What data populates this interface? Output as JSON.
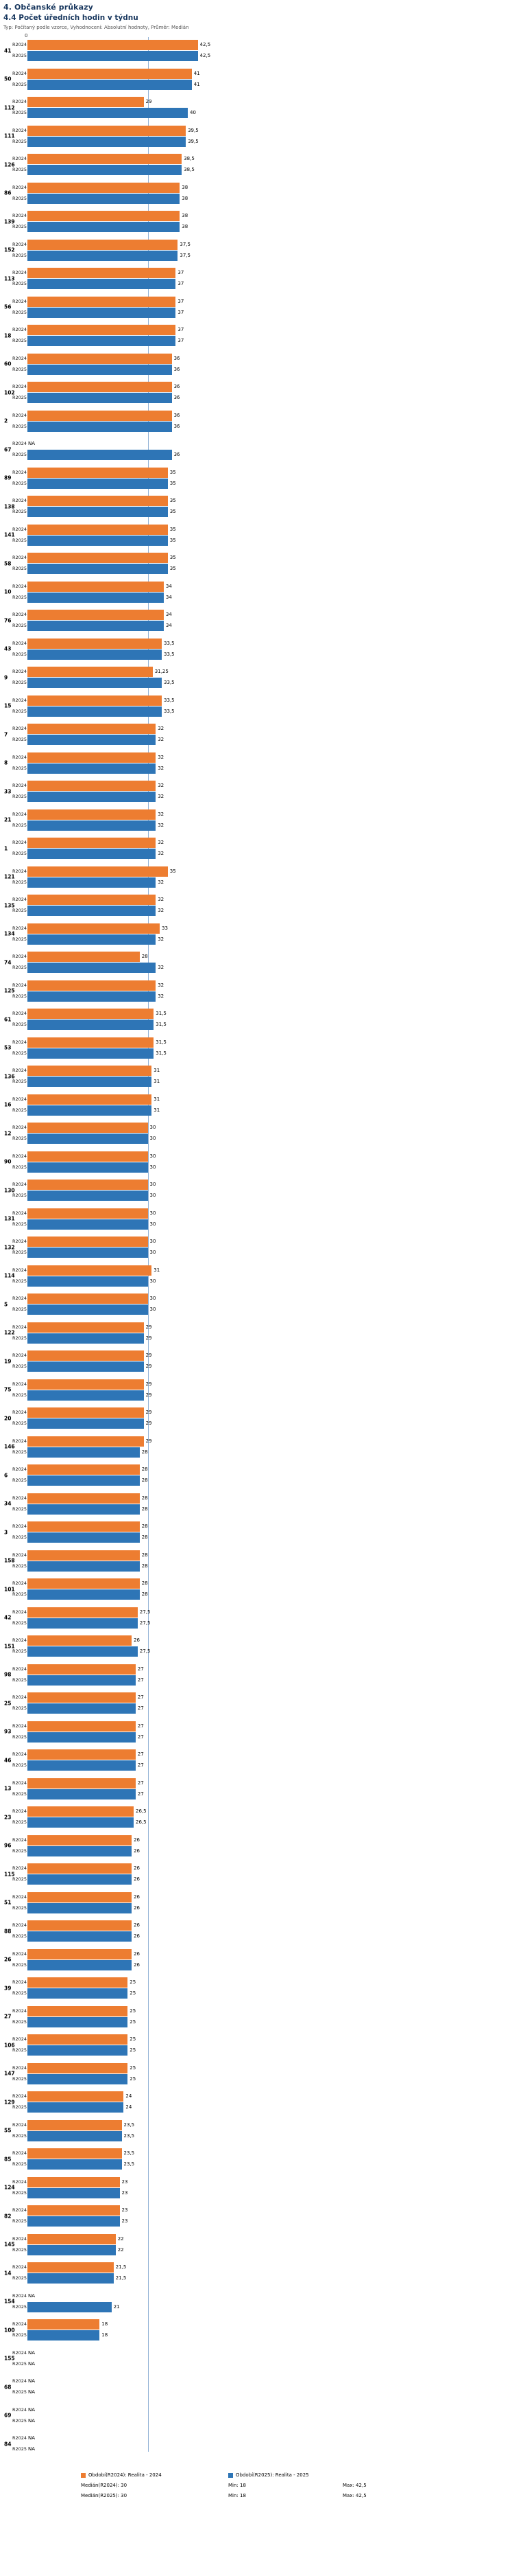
{
  "header": {
    "title": "4. Občanské průkazy",
    "subtitle": "4.4 Počet úředních hodin v týdnu",
    "meta": "Typ: Počítaný podle vzorce, Vyhodnocení: Absolutní hodnoty, Průměr: Medián"
  },
  "colors": {
    "heading": "#17365D",
    "bar_2024": "#ED7D31",
    "bar_2025": "#2E75B6",
    "median_line": "#8FAFD4"
  },
  "chart_data": {
    "type": "bar",
    "orientation": "horizontal",
    "axis_zero_label": "0",
    "median": 30,
    "x_min": 0,
    "x_max": 42.5,
    "sort": "descending by R2025",
    "series": [
      {
        "name": "R2024",
        "color": "#ED7D31"
      },
      {
        "name": "R2025",
        "color": "#2E75B6"
      }
    ],
    "groups": [
      {
        "id": "41",
        "v2024": 42.5,
        "v2025": 42.5
      },
      {
        "id": "50",
        "v2024": 41,
        "v2025": 41
      },
      {
        "id": "112",
        "v2024": 29,
        "v2025": 40
      },
      {
        "id": "111",
        "v2024": 39.5,
        "v2025": 39.5
      },
      {
        "id": "126",
        "v2024": 38.5,
        "v2025": 38.5
      },
      {
        "id": "86",
        "v2024": 38,
        "v2025": 38
      },
      {
        "id": "139",
        "v2024": 38,
        "v2025": 38
      },
      {
        "id": "152",
        "v2024": 37.5,
        "v2025": 37.5
      },
      {
        "id": "113",
        "v2024": 37,
        "v2025": 37
      },
      {
        "id": "56",
        "v2024": 37,
        "v2025": 37
      },
      {
        "id": "18",
        "v2024": 37,
        "v2025": 37
      },
      {
        "id": "60",
        "v2024": 36,
        "v2025": 36
      },
      {
        "id": "102",
        "v2024": 36,
        "v2025": 36
      },
      {
        "id": "2",
        "v2024": 36,
        "v2025": 36
      },
      {
        "id": "67",
        "v2024": "NA",
        "v2025": 36
      },
      {
        "id": "89",
        "v2024": 35,
        "v2025": 35
      },
      {
        "id": "138",
        "v2024": 35,
        "v2025": 35
      },
      {
        "id": "141",
        "v2024": 35,
        "v2025": 35
      },
      {
        "id": "58",
        "v2024": 35,
        "v2025": 35
      },
      {
        "id": "10",
        "v2024": 34,
        "v2025": 34
      },
      {
        "id": "76",
        "v2024": 34,
        "v2025": 34
      },
      {
        "id": "43",
        "v2024": 33.5,
        "v2025": 33.5
      },
      {
        "id": "9",
        "v2024": 31.25,
        "v2025": 33.5
      },
      {
        "id": "15",
        "v2024": 33.5,
        "v2025": 33.5
      },
      {
        "id": "7",
        "v2024": 32,
        "v2025": 32
      },
      {
        "id": "8",
        "v2024": 32,
        "v2025": 32
      },
      {
        "id": "33",
        "v2024": 32,
        "v2025": 32
      },
      {
        "id": "21",
        "v2024": 32,
        "v2025": 32
      },
      {
        "id": "1",
        "v2024": 32,
        "v2025": 32
      },
      {
        "id": "121",
        "v2024": 35,
        "v2025": 32
      },
      {
        "id": "135",
        "v2024": 32,
        "v2025": 32
      },
      {
        "id": "134",
        "v2024": 33,
        "v2025": 32
      },
      {
        "id": "74",
        "v2024": 28,
        "v2025": 32
      },
      {
        "id": "125",
        "v2024": 32,
        "v2025": 32
      },
      {
        "id": "61",
        "v2024": 31.5,
        "v2025": 31.5
      },
      {
        "id": "53",
        "v2024": 31.5,
        "v2025": 31.5
      },
      {
        "id": "136",
        "v2024": 31,
        "v2025": 31
      },
      {
        "id": "16",
        "v2024": 31,
        "v2025": 31
      },
      {
        "id": "12",
        "v2024": 30,
        "v2025": 30
      },
      {
        "id": "90",
        "v2024": 30,
        "v2025": 30
      },
      {
        "id": "130",
        "v2024": 30,
        "v2025": 30
      },
      {
        "id": "131",
        "v2024": 30,
        "v2025": 30
      },
      {
        "id": "132",
        "v2024": 30,
        "v2025": 30
      },
      {
        "id": "114",
        "v2024": 31,
        "v2025": 30
      },
      {
        "id": "5",
        "v2024": 30,
        "v2025": 30
      },
      {
        "id": "122",
        "v2024": 29,
        "v2025": 29
      },
      {
        "id": "19",
        "v2024": 29,
        "v2025": 29
      },
      {
        "id": "75",
        "v2024": 29,
        "v2025": 29
      },
      {
        "id": "20",
        "v2024": 29,
        "v2025": 29
      },
      {
        "id": "146",
        "v2024": 29,
        "v2025": 28
      },
      {
        "id": "6",
        "v2024": 28,
        "v2025": 28
      },
      {
        "id": "34",
        "v2024": 28,
        "v2025": 28
      },
      {
        "id": "3",
        "v2024": 28,
        "v2025": 28
      },
      {
        "id": "158",
        "v2024": 28,
        "v2025": 28
      },
      {
        "id": "101",
        "v2024": 28,
        "v2025": 28
      },
      {
        "id": "42",
        "v2024": 27.5,
        "v2025": 27.5
      },
      {
        "id": "151",
        "v2024": 26,
        "v2025": 27.5
      },
      {
        "id": "98",
        "v2024": 27,
        "v2025": 27
      },
      {
        "id": "25",
        "v2024": 27,
        "v2025": 27
      },
      {
        "id": "93",
        "v2024": 27,
        "v2025": 27
      },
      {
        "id": "46",
        "v2024": 27,
        "v2025": 27
      },
      {
        "id": "13",
        "v2024": 27,
        "v2025": 27
      },
      {
        "id": "23",
        "v2024": 26.5,
        "v2025": 26.5
      },
      {
        "id": "96",
        "v2024": 26,
        "v2025": 26
      },
      {
        "id": "115",
        "v2024": 26,
        "v2025": 26
      },
      {
        "id": "51",
        "v2024": 26,
        "v2025": 26
      },
      {
        "id": "88",
        "v2024": 26,
        "v2025": 26
      },
      {
        "id": "26",
        "v2024": 26,
        "v2025": 26
      },
      {
        "id": "39",
        "v2024": 25,
        "v2025": 25
      },
      {
        "id": "27",
        "v2024": 25,
        "v2025": 25
      },
      {
        "id": "106",
        "v2024": 25,
        "v2025": 25
      },
      {
        "id": "147",
        "v2024": 25,
        "v2025": 25
      },
      {
        "id": "129",
        "v2024": 24,
        "v2025": 24
      },
      {
        "id": "55",
        "v2024": 23.5,
        "v2025": 23.5
      },
      {
        "id": "85",
        "v2024": 23.5,
        "v2025": 23.5
      },
      {
        "id": "124",
        "v2024": 23,
        "v2025": 23
      },
      {
        "id": "82",
        "v2024": 23,
        "v2025": 23
      },
      {
        "id": "145",
        "v2024": 22,
        "v2025": 22
      },
      {
        "id": "14",
        "v2024": 21.5,
        "v2025": 21.5
      },
      {
        "id": "154",
        "v2024": "NA",
        "v2025": 21
      },
      {
        "id": "100",
        "v2024": 18,
        "v2025": 18
      },
      {
        "id": "155",
        "v2024": "NA",
        "v2025": "NA"
      },
      {
        "id": "68",
        "v2024": "NA",
        "v2025": "NA"
      },
      {
        "id": "69",
        "v2024": "NA",
        "v2025": "NA"
      },
      {
        "id": "84",
        "v2024": "NA",
        "v2025": "NA"
      }
    ]
  },
  "legend": {
    "r2024": "Období(R2024): Realita - 2024",
    "r2025": "Období(R2025): Realita - 2025",
    "median_2024": "Medián(R2024): 30",
    "min_2024": "Min: 18",
    "max_2024": "Max: 42,5",
    "median_2025": "Medián(R2025): 30",
    "min_2025": "Min: 18",
    "max_2025": "Max: 42,5"
  }
}
